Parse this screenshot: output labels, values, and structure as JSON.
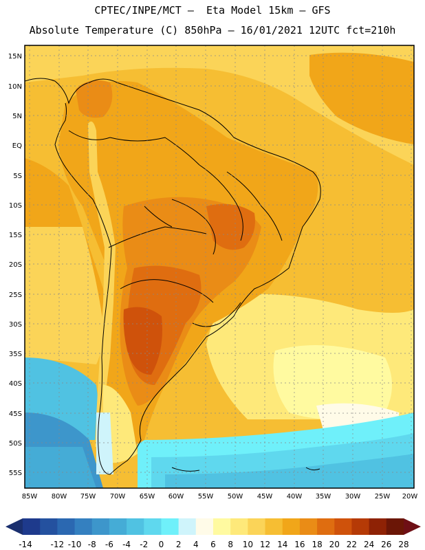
{
  "header": {
    "line1": "CPTEC/INPE/MCT –  Eta Model 15km – GFS",
    "line2": "Absolute Temperature (C) 850hPa – 16/01/2021 12UTC fct=210h"
  },
  "map": {
    "lat_labels": [
      "15N",
      "10N",
      "5N",
      "EQ",
      "5S",
      "10S",
      "15S",
      "20S",
      "25S",
      "30S",
      "35S",
      "40S",
      "45S",
      "50S",
      "55S"
    ],
    "lon_labels": [
      "85W",
      "80W",
      "75W",
      "70W",
      "65W",
      "60W",
      "55W",
      "50W",
      "45W",
      "40W",
      "35W",
      "30W",
      "25W",
      "20W"
    ]
  },
  "colorbar": {
    "labels": [
      "-14",
      "-12",
      "-10",
      "-8",
      "-6",
      "-4",
      "-2",
      "0",
      "2",
      "4",
      "6",
      "8",
      "10",
      "12",
      "14",
      "16",
      "18",
      "20",
      "22",
      "24",
      "26",
      "28"
    ],
    "colors": [
      "#1e3a8c",
      "#24519f",
      "#2b68b1",
      "#3480c0",
      "#3d96cb",
      "#45acd6",
      "#50c2e2",
      "#5fd8ee",
      "#6ff0fa",
      "#cff4fb",
      "#fffbe8",
      "#fffaa0",
      "#fee97a",
      "#fbd458",
      "#f6be33",
      "#f1a619",
      "#ea8c16",
      "#df6d10",
      "#cf520b",
      "#b53a06",
      "#8e2205",
      "#6b1606"
    ],
    "end_left": "#1a2f6e",
    "end_right": "#6e0f15"
  }
}
